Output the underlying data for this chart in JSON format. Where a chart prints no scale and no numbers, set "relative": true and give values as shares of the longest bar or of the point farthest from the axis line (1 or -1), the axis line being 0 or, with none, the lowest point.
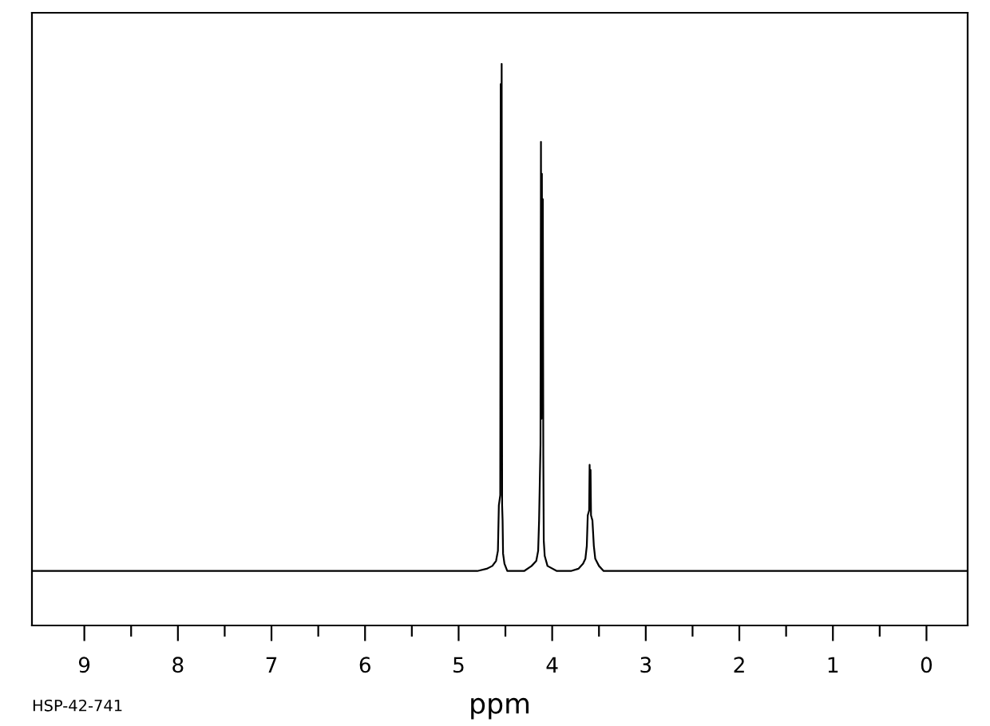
{
  "chart_data": {
    "type": "line",
    "relative": true,
    "xlabel": "ppm",
    "annotations": [
      "HSP-42-741"
    ],
    "xlim": [
      9.56,
      -0.44
    ],
    "xticks": [
      9,
      {
        "value": 8.5,
        "label": null
      },
      8,
      {
        "value": 7.5,
        "label": null
      },
      7,
      {
        "value": 6.5,
        "label": null
      },
      6,
      {
        "value": 5.5,
        "label": null
      },
      5,
      {
        "value": 4.5,
        "label": null
      },
      4,
      {
        "value": 3.5,
        "label": null
      },
      3,
      {
        "value": 2.5,
        "label": null
      },
      2,
      {
        "value": 1.5,
        "label": null
      },
      1,
      {
        "value": 0.5,
        "label": null
      },
      0
    ],
    "grid": false,
    "marker": "none",
    "line_style": "solid",
    "series": [
      {
        "color": "#000000",
        "x": [
          9.56,
          4.8,
          4.7,
          4.64,
          4.6,
          4.58,
          4.57,
          4.555,
          4.55,
          4.545,
          4.54,
          4.535,
          4.53,
          4.525,
          4.51,
          4.48,
          4.3,
          4.22,
          4.17,
          4.15,
          4.14,
          4.125,
          4.12,
          4.115,
          4.11,
          4.105,
          4.1,
          4.095,
          4.09,
          4.08,
          4.05,
          3.95,
          3.8,
          3.72,
          3.67,
          3.645,
          3.63,
          3.62,
          3.605,
          3.6,
          3.595,
          3.59,
          3.585,
          3.57,
          3.555,
          3.54,
          3.5,
          3.45,
          -0.44
        ],
        "values": [
          0.097,
          0.097,
          0.101,
          0.106,
          0.115,
          0.133,
          0.214,
          0.232,
          0.964,
          0.277,
          1.0,
          0.214,
          0.187,
          0.128,
          0.11,
          0.097,
          0.097,
          0.106,
          0.115,
          0.133,
          0.187,
          0.322,
          0.861,
          0.368,
          0.804,
          0.413,
          0.759,
          0.304,
          0.151,
          0.124,
          0.106,
          0.097,
          0.097,
          0.101,
          0.11,
          0.119,
          0.142,
          0.196,
          0.205,
          0.286,
          0.232,
          0.277,
          0.196,
          0.187,
          0.142,
          0.119,
          0.106,
          0.097,
          0.097
        ]
      }
    ]
  }
}
